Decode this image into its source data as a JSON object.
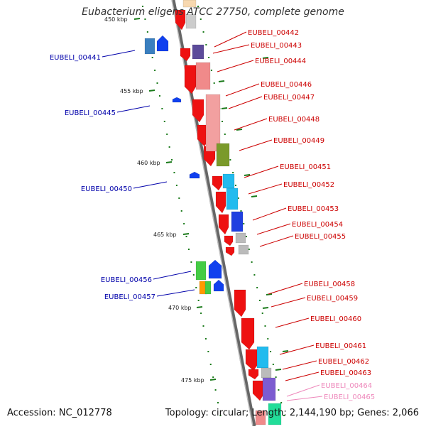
{
  "title": "Eubacterium eligens ATCC 27750, complete genome",
  "footer": {
    "accession": "Accession: NC_012778",
    "stats": "Topology: circular; Length: 2,144,190 bp; Genes: 2,066"
  },
  "kbp_ticks": [
    "450 kbp",
    "455 kbp",
    "460 kbp",
    "465 kbp",
    "470 kbp",
    "475 kbp"
  ],
  "colors": {
    "backbone": "#888888",
    "left_label": "#0000aa",
    "right_label": "#cc0000",
    "faint_label": "#ee88bb",
    "tick": "#1a7a1a"
  },
  "genes_left": [
    "EUBELI_00441",
    "EUBELI_00445",
    "EUBELI_00450",
    "EUBELI_00456",
    "EUBELI_00457"
  ],
  "genes_right": [
    "EUBELI_00442",
    "EUBELI_00443",
    "EUBELI_00444",
    "EUBELI_00446",
    "EUBELI_00447",
    "EUBELI_00448",
    "EUBELI_00449",
    "EUBELI_00451",
    "EUBELI_00452",
    "EUBELI_00453",
    "EUBELI_00454",
    "EUBELI_00455",
    "EUBELI_00458",
    "EUBELI_00459",
    "EUBELI_00460",
    "EUBELI_00461",
    "EUBELI_00462",
    "EUBELI_00463"
  ],
  "genes_faint": [
    "EUBELI_00464",
    "EUBELI_00465"
  ]
}
